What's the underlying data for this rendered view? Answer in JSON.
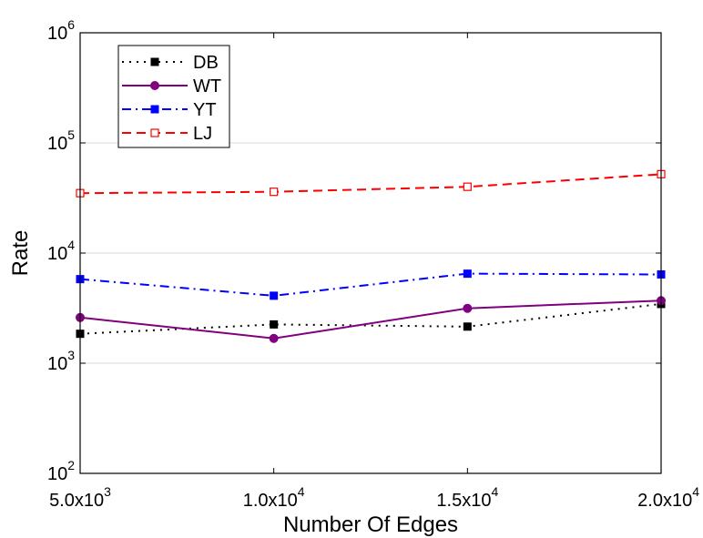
{
  "chart_data": {
    "type": "line",
    "title": "",
    "xlabel": "Number Of  Edges",
    "ylabel": "Rate",
    "yscale": "log",
    "xlim": [
      5000,
      20000
    ],
    "ylim": [
      100,
      1000000
    ],
    "grid": true,
    "x": [
      5000,
      10000,
      15000,
      20000
    ],
    "x_tick_labels": [
      {
        "base": "5.0x10",
        "exp": "3"
      },
      {
        "base": "1.0x10",
        "exp": "4"
      },
      {
        "base": "1.5x10",
        "exp": "4"
      },
      {
        "base": "2.0x10",
        "exp": "4"
      }
    ],
    "y_ticks": [
      100,
      1000,
      10000,
      100000,
      1000000
    ],
    "y_tick_labels": [
      {
        "base": "10",
        "exp": "2"
      },
      {
        "base": "10",
        "exp": "3"
      },
      {
        "base": "10",
        "exp": "4"
      },
      {
        "base": "10",
        "exp": "5"
      },
      {
        "base": "10",
        "exp": "6"
      }
    ],
    "legend_position": "top-left",
    "series": [
      {
        "name": "DB",
        "values": [
          1850,
          2250,
          2150,
          3450
        ],
        "color": "#000000",
        "dash": "dot",
        "marker": "square-filled"
      },
      {
        "name": "WT",
        "values": [
          2600,
          1680,
          3150,
          3700
        ],
        "color": "#800080",
        "dash": "solid",
        "marker": "circle-filled"
      },
      {
        "name": "YT",
        "values": [
          5800,
          4100,
          6500,
          6400
        ],
        "color": "#0000ff",
        "dash": "dashdot",
        "marker": "square-filled"
      },
      {
        "name": "LJ",
        "values": [
          35000,
          36000,
          40000,
          52000
        ],
        "color": "#ff0000",
        "dash": "dash",
        "marker": "square-open"
      }
    ]
  }
}
